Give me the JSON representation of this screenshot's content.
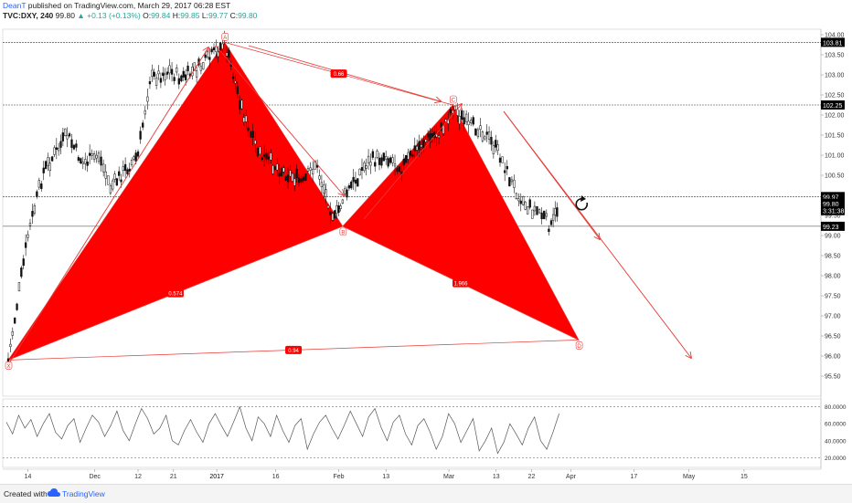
{
  "header": {
    "author": "DeanT",
    "published": "published on TradingView.com, March 29, 2017 06:28 EST",
    "symbol": "TVC:DXY, 240",
    "last": "99.80",
    "change": "+0.13 (+0.13%)",
    "ohlc_o_label": "O:",
    "ohlc_o": "99.84",
    "ohlc_h_label": "H:",
    "ohlc_h": "99.85",
    "ohlc_l_label": "L:",
    "ohlc_l": "99.77",
    "ohlc_c_label": "C:",
    "ohlc_c": "99.80",
    "up_arrow": "▲"
  },
  "footer": {
    "created_with": "Created with",
    "brand": "TradingView",
    "logo_icon": "tradingview-cloud-icon"
  },
  "colors": {
    "pattern_fill": "#ff0000",
    "pattern_line": "#e53935",
    "candle": "#111111",
    "oscillator": "#555555",
    "oscillator_upper": "#e53935",
    "oscillator_lower": "#43a047",
    "label_bg": "#000000",
    "label_fg": "#ffffff",
    "brand": "#2962ff"
  },
  "chart_data": {
    "type": "line",
    "series": [
      {
        "x": [
          "2016-11-09",
          "2016-11-14",
          "2016-11-18",
          "2016-11-24",
          "2016-11-28",
          "2016-12-02",
          "2016-12-05",
          "2016-12-12",
          "2016-12-15",
          "2016-12-20",
          "2016-12-23",
          "2016-12-28",
          "2017-01-03",
          "2017-01-09",
          "2017-01-12",
          "2017-01-18",
          "2017-01-23",
          "2017-01-26",
          "2017-01-31",
          "2017-02-02",
          "2017-02-08",
          "2017-02-13",
          "2017-02-17",
          "2017-02-22",
          "2017-02-27",
          "2017-03-02",
          "2017-03-06",
          "2017-03-09",
          "2017-03-14",
          "2017-03-17",
          "2017-03-21",
          "2017-03-24",
          "2017-03-27",
          "2017-03-29"
        ],
        "values": [
          95.9,
          99.0,
          100.6,
          101.5,
          100.8,
          101.0,
          100.2,
          101.0,
          102.9,
          103.1,
          102.9,
          103.2,
          103.8,
          101.6,
          101.0,
          100.6,
          100.3,
          100.8,
          99.4,
          99.9,
          100.8,
          101.0,
          100.7,
          101.3,
          101.6,
          102.2,
          101.7,
          101.7,
          101.0,
          100.3,
          99.7,
          99.6,
          99.2,
          99.8
        ]
      }
    ],
    "pattern": {
      "name": "XABCD harmonic",
      "points": [
        {
          "label": "X",
          "x": "2016-11-09",
          "y": 95.9
        },
        {
          "label": "A",
          "x": "2017-01-03",
          "y": 103.81
        },
        {
          "label": "B",
          "x": "2017-02-02",
          "y": 99.23
        },
        {
          "label": "C",
          "x": "2017-03-02",
          "y": 102.25
        },
        {
          "label": "D",
          "x": "2017-04-03",
          "y": 96.4
        }
      ],
      "ratios": [
        "0.574",
        "0.66",
        "1.966",
        "0.94"
      ]
    },
    "price_levels": [
      "103.81",
      "102.25",
      "99.97",
      "99.80",
      "3:31:38",
      "99.23"
    ],
    "ylim": [
      95.5,
      104.0
    ],
    "y_ticks": [
      "104.00",
      "103.50",
      "103.00",
      "102.50",
      "102.00",
      "101.50",
      "101.00",
      "100.50",
      "100.00",
      "99.50",
      "99.00",
      "98.50",
      "98.00",
      "97.50",
      "97.00",
      "96.50",
      "96.00",
      "95.50"
    ],
    "x_ticks": [
      "14",
      "Dec",
      "12",
      "21",
      "2017",
      "16",
      "Feb",
      "13",
      "Mar",
      "13",
      "22",
      "Apr",
      "17",
      "May",
      "15"
    ],
    "oscillator": {
      "ticks": [
        "80.0000",
        "60.0000",
        "40.0000",
        "20.0000"
      ],
      "upper_level": 80,
      "lower_level": 20,
      "values": [
        62,
        48,
        70,
        55,
        65,
        45,
        60,
        72,
        50,
        42,
        58,
        66,
        38,
        55,
        70,
        62,
        45,
        58,
        75,
        52,
        40,
        60,
        78,
        66,
        48,
        55,
        70,
        40,
        35,
        52,
        65,
        50,
        38,
        60,
        72,
        58,
        45,
        62,
        80,
        55,
        40,
        68,
        60,
        45,
        70,
        52,
        38,
        58,
        66,
        30,
        48,
        62,
        70,
        55,
        42,
        58,
        75,
        60,
        45,
        68,
        78,
        56,
        40,
        62,
        70,
        48,
        35,
        58,
        66,
        50,
        30,
        45,
        72,
        60,
        38,
        52,
        66,
        28,
        40,
        55,
        25,
        38,
        60,
        48,
        35,
        55,
        68,
        40,
        30,
        50,
        72
      ]
    },
    "grid": false
  }
}
